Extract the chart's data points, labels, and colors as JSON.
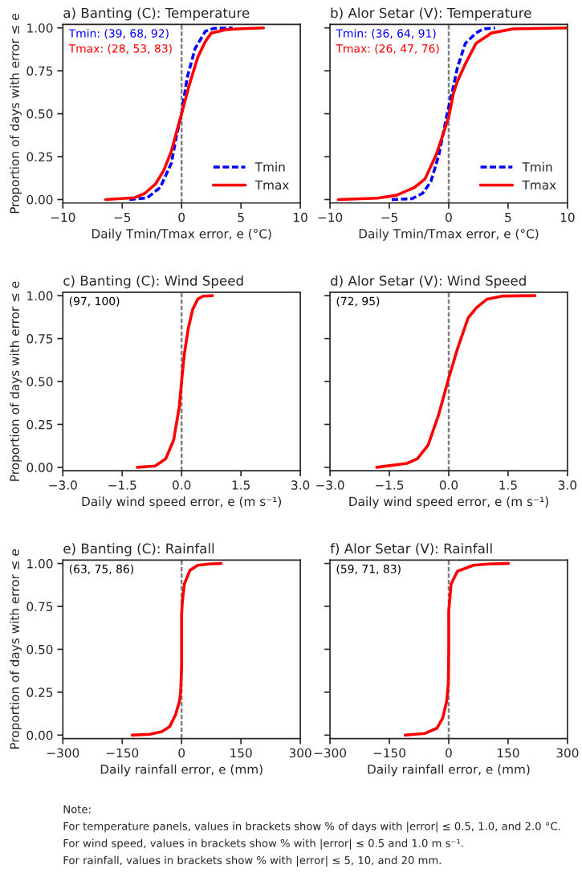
{
  "chart_data": [
    {
      "type": "line",
      "title": "a) Banting (C): Temperature",
      "xlabel": "Daily Tmin/Tmax error, e (°C)",
      "ylabel": "Proportion of days with error ≤ e",
      "annotations": [
        "Tmin: (39, 68, 92)",
        "Tmax: (28, 53, 83)"
      ],
      "series": [
        {
          "name": "Tmin",
          "color": "#0000ff",
          "line_style": "dashed",
          "x": [
            -4.4,
            -2.9,
            -1.8,
            -0.87,
            -0.43,
            0,
            0.47,
            1.14,
            2.0,
            2.7,
            4.3
          ],
          "values": [
            0,
            0.01,
            0.07,
            0.21,
            0.37,
            0.5,
            0.71,
            0.88,
            0.98,
            0.997,
            1.0
          ]
        },
        {
          "name": "Tmax",
          "color": "#ff0000",
          "line_style": "solid",
          "x": [
            -6.4,
            -4,
            -3.1,
            -2.2,
            -1.5,
            -0.87,
            -0.4,
            0,
            0.7,
            1.37,
            2.0,
            2.5,
            3.8,
            5,
            6.9
          ],
          "values": [
            0,
            0.01,
            0.036,
            0.09,
            0.17,
            0.28,
            0.4,
            0.5,
            0.68,
            0.83,
            0.92,
            0.97,
            0.99,
            0.995,
            1.0
          ]
        }
      ],
      "xlim": [
        -10,
        10
      ],
      "xticks": [
        {
          "value": -10,
          "label": "−10"
        },
        {
          "value": -5,
          "label": "−5"
        },
        0,
        5,
        10
      ],
      "ylim": [
        -0.02,
        1.02
      ],
      "yticks": [
        {
          "value": 0,
          "label": "0.00"
        },
        {
          "value": 0.25,
          "label": "0.25"
        },
        {
          "value": 0.5,
          "label": "0.50"
        },
        {
          "value": 0.75,
          "label": "0.75"
        },
        {
          "value": 1,
          "label": "1.00"
        }
      ],
      "ref_lines": [
        {
          "axis": "x",
          "value": 0,
          "color": "#808080",
          "line_style": "dashed"
        }
      ],
      "legend": "bottom right"
    },
    {
      "type": "line",
      "title": "b) Alor Setar (V): Temperature",
      "xlabel": "Daily Tmin/Tmax error, e (°C)",
      "annotations": [
        "Tmin: (36, 64, 91)",
        "Tmax: (26, 47, 76)"
      ],
      "series": [
        {
          "name": "Tmin",
          "color": "#0000ff",
          "line_style": "dashed",
          "x": [
            -4.8,
            -3.1,
            -2.2,
            -1.5,
            -0.83,
            -0.16,
            0.3,
            0.74,
            1.4,
            2.3,
            2.9,
            3.9
          ],
          "values": [
            0,
            0.005,
            0.036,
            0.105,
            0.26,
            0.49,
            0.63,
            0.77,
            0.91,
            0.97,
            0.994,
            1.0
          ]
        },
        {
          "name": "Tmax",
          "color": "#ff0000",
          "line_style": "solid",
          "x": [
            -9.3,
            -6,
            -4.4,
            -2.9,
            -2,
            -1.06,
            -0.38,
            0,
            0.4,
            0.74,
            1.4,
            2.3,
            3.6,
            5.4,
            10
          ],
          "values": [
            0,
            0.008,
            0.025,
            0.07,
            0.12,
            0.26,
            0.4,
            0.48,
            0.62,
            0.69,
            0.79,
            0.91,
            0.97,
            0.994,
            1.0
          ]
        }
      ],
      "xlim": [
        -10,
        10
      ],
      "xticks": [
        {
          "value": -10,
          "label": "−10"
        },
        {
          "value": -5,
          "label": "−5"
        },
        0,
        5,
        10
      ],
      "ylim": [
        -0.02,
        1.02
      ],
      "yticks": [
        {
          "value": 0,
          "label": null
        },
        {
          "value": 0.25,
          "label": null
        },
        {
          "value": 0.5,
          "label": null
        },
        {
          "value": 0.75,
          "label": null
        },
        {
          "value": 1,
          "label": null
        }
      ],
      "tick_labels": "x",
      "ref_lines": [
        {
          "axis": "x",
          "value": 0,
          "color": "#808080",
          "line_style": "dashed"
        }
      ],
      "legend": "bottom right"
    },
    {
      "type": "line",
      "title": "c) Banting (C): Wind Speed",
      "xlabel": "Daily wind speed error, e (m s⁻¹)",
      "ylabel": "Proportion of days with error ≤ e",
      "annotations": [
        "(97, 100)"
      ],
      "series": [
        {
          "color": "#ff0000",
          "line_style": "solid",
          "x": [
            -1.12,
            -0.67,
            -0.4,
            -0.2,
            -0.06,
            0,
            0.07,
            0.17,
            0.28,
            0.41,
            0.54,
            0.78
          ],
          "values": [
            0,
            0.008,
            0.05,
            0.16,
            0.35,
            0.5,
            0.66,
            0.81,
            0.92,
            0.98,
            0.997,
            1.0
          ]
        }
      ],
      "xlim": [
        -3,
        3
      ],
      "xticks": [
        {
          "value": -3,
          "label": "−3.0"
        },
        {
          "value": -1.5,
          "label": "−1.5"
        },
        {
          "value": 0,
          "label": "0.0"
        },
        {
          "value": 1.5,
          "label": "1.5"
        },
        {
          "value": 3,
          "label": "3.0"
        }
      ],
      "ylim": [
        -0.02,
        1.02
      ],
      "yticks": [
        {
          "value": 0,
          "label": "0.00"
        },
        {
          "value": 0.25,
          "label": "0.25"
        },
        {
          "value": 0.5,
          "label": "0.50"
        },
        {
          "value": 0.75,
          "label": "0.75"
        },
        {
          "value": 1,
          "label": "1.00"
        }
      ],
      "ref_lines": [
        {
          "axis": "x",
          "value": 0,
          "color": "#808080",
          "line_style": "dashed"
        }
      ]
    },
    {
      "type": "line",
      "title": "d) Alor Setar (V): Wind Speed",
      "xlabel": "Daily wind speed error, e (m s⁻¹)",
      "annotations": [
        "(72, 95)"
      ],
      "series": [
        {
          "color": "#ff0000",
          "line_style": "solid",
          "x": [
            -1.82,
            -1.06,
            -0.79,
            -0.52,
            -0.25,
            0,
            0.22,
            0.49,
            0.7,
            0.97,
            1.37,
            2.18
          ],
          "values": [
            0,
            0.023,
            0.05,
            0.13,
            0.31,
            0.52,
            0.69,
            0.87,
            0.93,
            0.98,
            0.998,
            1.0
          ]
        }
      ],
      "xlim": [
        -3,
        3
      ],
      "xticks": [
        {
          "value": -3,
          "label": "−3.0"
        },
        {
          "value": -1.5,
          "label": "−1.5"
        },
        {
          "value": 0,
          "label": "0.0"
        },
        {
          "value": 1.5,
          "label": "1.5"
        },
        {
          "value": 3,
          "label": "3.0"
        }
      ],
      "ylim": [
        -0.02,
        1.02
      ],
      "yticks": [
        {
          "value": 0,
          "label": null
        },
        {
          "value": 0.25,
          "label": null
        },
        {
          "value": 0.5,
          "label": null
        },
        {
          "value": 0.75,
          "label": null
        },
        {
          "value": 1,
          "label": null
        }
      ],
      "tick_labels": "x",
      "ref_lines": [
        {
          "axis": "x",
          "value": 0,
          "color": "#808080",
          "line_style": "dashed"
        }
      ]
    },
    {
      "type": "line",
      "title": "e) Banting (C): Rainfall",
      "xlabel": "Daily rainfall error, e (mm)",
      "ylabel": "Proportion of days with error ≤ e",
      "annotations": [
        "(63, 75, 86)"
      ],
      "series": [
        {
          "color": "#ff0000",
          "line_style": "solid",
          "x": [
            -125,
            -80,
            -50,
            -30,
            -15,
            -5,
            -2,
            0,
            0,
            2,
            7,
            21,
            41,
            70,
            100
          ],
          "values": [
            0,
            0.005,
            0.02,
            0.05,
            0.12,
            0.2,
            0.27,
            0.4,
            0.7,
            0.78,
            0.88,
            0.96,
            0.99,
            0.997,
            1.0
          ]
        }
      ],
      "xlim": [
        -300,
        300
      ],
      "xticks": [
        {
          "value": -300,
          "label": "−300"
        },
        {
          "value": -150,
          "label": "−150"
        },
        0,
        150,
        300
      ],
      "ylim": [
        -0.02,
        1.02
      ],
      "yticks": [
        {
          "value": 0,
          "label": "0.00"
        },
        {
          "value": 0.25,
          "label": "0.25"
        },
        {
          "value": 0.5,
          "label": "0.50"
        },
        {
          "value": 0.75,
          "label": "0.75"
        },
        {
          "value": 1,
          "label": "1.00"
        }
      ],
      "ref_lines": [
        {
          "axis": "x",
          "value": 0,
          "color": "#808080",
          "line_style": "dashed"
        }
      ]
    },
    {
      "type": "line",
      "title": "f) Alor Setar (V): Rainfall",
      "xlabel": "Daily rainfall error, e (mm)",
      "annotations": [
        "(59, 71, 83)"
      ],
      "series": [
        {
          "color": "#ff0000",
          "line_style": "solid",
          "x": [
            -110,
            -60,
            -30,
            -15,
            -5,
            -1,
            0,
            0,
            1,
            6,
            22,
            63,
            100,
            151
          ],
          "values": [
            0,
            0.01,
            0.04,
            0.1,
            0.2,
            0.3,
            0.5,
            0.72,
            0.75,
            0.88,
            0.955,
            0.99,
            0.997,
            1.0
          ]
        }
      ],
      "xlim": [
        -300,
        300
      ],
      "xticks": [
        {
          "value": -300,
          "label": "−300"
        },
        {
          "value": -150,
          "label": "−150"
        },
        0,
        150,
        300
      ],
      "ylim": [
        -0.02,
        1.02
      ],
      "yticks": [
        {
          "value": 0,
          "label": null
        },
        {
          "value": 0.25,
          "label": null
        },
        {
          "value": 0.5,
          "label": null
        },
        {
          "value": 0.75,
          "label": null
        },
        {
          "value": 1,
          "label": null
        }
      ],
      "tick_labels": "x",
      "ref_lines": [
        {
          "axis": "x",
          "value": 0,
          "color": "#808080",
          "line_style": "dashed"
        }
      ]
    },
    {
      "type": "other",
      "annotations": [
        "Note:",
        "For temperature panels, values in brackets show % of days with |error| ≤ 0.5, 1.0, and 2.0 °C.",
        "For wind speed, values in brackets show % with |error| ≤ 0.5 and 1.0 m s⁻¹.",
        "For rainfall, values in brackets show % with |error| ≤ 5, 10, and 20 mm."
      ]
    }
  ]
}
